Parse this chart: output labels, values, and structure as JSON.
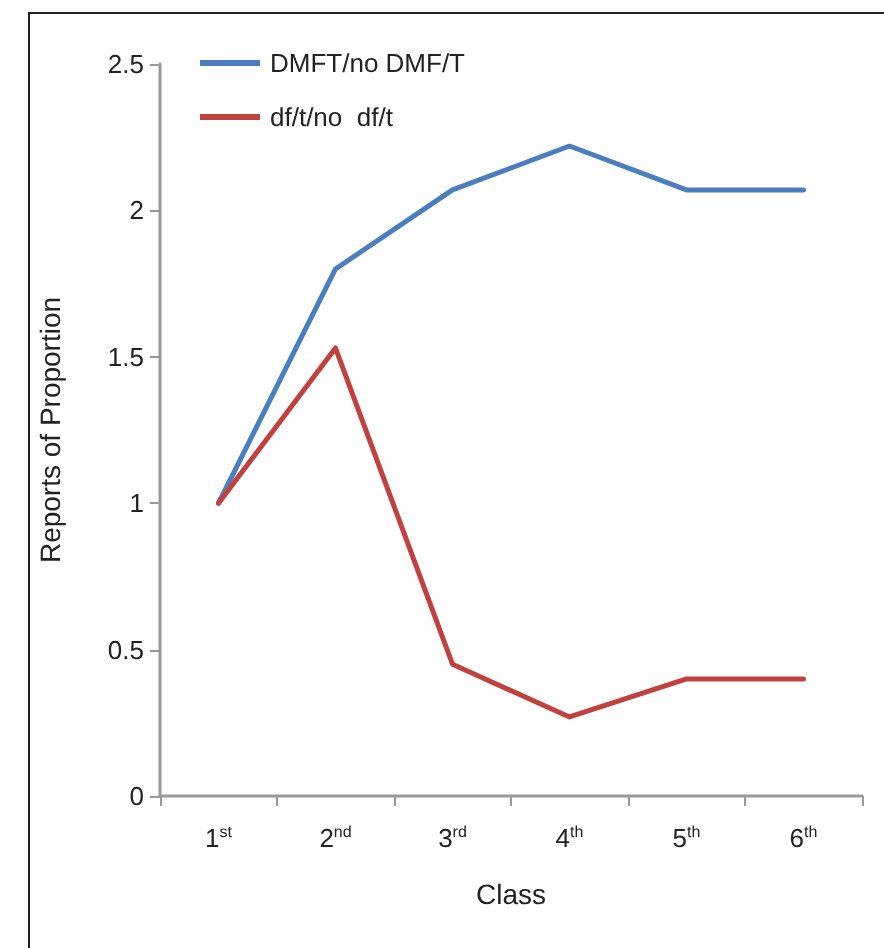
{
  "chart_data": {
    "type": "line",
    "xlabel": "Class",
    "ylabel": "Reports of Proportion",
    "categories": [
      "1$^{st}$",
      "2$^{nd}$",
      "3$^{rd}$",
      "4$^{th}$",
      "5$^{th}$",
      "6$^{th}$"
    ],
    "series": [
      {
        "name": "DMFT/no DMF/T",
        "color": "#4a7ebf",
        "values": [
          1,
          1.8,
          2.07,
          2.22,
          2.07,
          2.07
        ]
      },
      {
        "name": "df/t/no  df/t",
        "color": "#c0413e",
        "values": [
          1,
          1.53,
          0.45,
          0.27,
          0.4,
          0.4
        ]
      }
    ],
    "ylim": [
      0,
      2.5
    ],
    "yticks": [
      0,
      0.5,
      1,
      1.5,
      2,
      2.5
    ],
    "grid": false,
    "legend": "top left",
    "marker": "none",
    "line_style": "solid"
  }
}
